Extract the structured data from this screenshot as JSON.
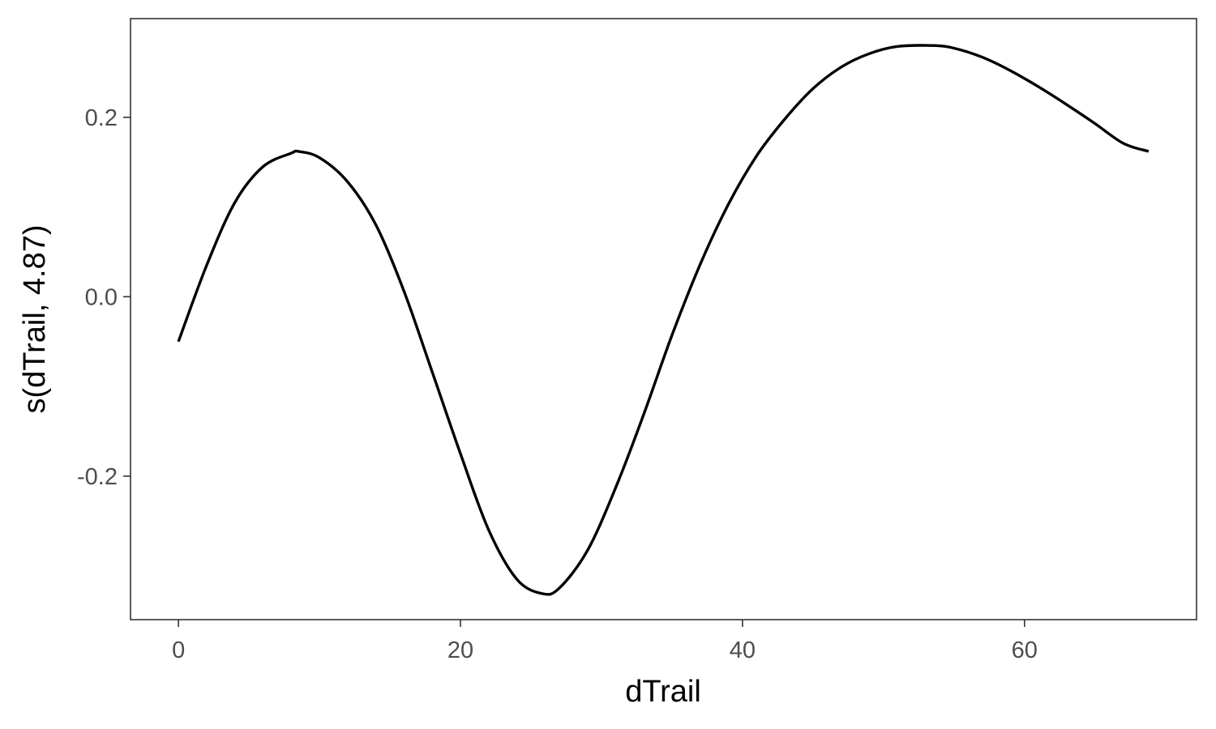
{
  "chart_data": {
    "type": "line",
    "title": "",
    "xlabel": "dTrail",
    "ylabel": "s(dTrail, 4.87)",
    "xlim": [
      -3.4,
      72.2
    ],
    "ylim": [
      -0.36,
      0.31
    ],
    "xticks": [
      0,
      20,
      40,
      60
    ],
    "xtick_labels": [
      "0",
      "20",
      "40",
      "60"
    ],
    "yticks": [
      -0.2,
      0.0,
      0.2
    ],
    "ytick_labels": [
      "-0.2",
      "0.0",
      "0.2"
    ],
    "grid": false,
    "legend": "none",
    "series": [
      {
        "line_color": "#000000",
        "x": [
          0,
          2,
          4,
          6,
          8,
          8.5,
          10,
          12,
          14,
          16,
          18,
          20,
          22,
          24,
          25.8,
          27,
          29,
          31,
          33,
          35,
          37,
          39,
          41,
          43,
          45,
          47,
          49,
          51,
          53.5,
          55,
          57,
          59,
          61,
          63,
          65,
          67,
          68.8
        ],
        "y": [
          -0.05,
          0.035,
          0.105,
          0.145,
          0.16,
          0.162,
          0.155,
          0.128,
          0.08,
          0.006,
          -0.084,
          -0.175,
          -0.26,
          -0.315,
          -0.331,
          -0.325,
          -0.283,
          -0.213,
          -0.131,
          -0.043,
          0.036,
          0.103,
          0.157,
          0.198,
          0.232,
          0.256,
          0.271,
          0.279,
          0.28,
          0.277,
          0.267,
          0.252,
          0.234,
          0.214,
          0.193,
          0.171,
          0.162
        ]
      }
    ]
  }
}
